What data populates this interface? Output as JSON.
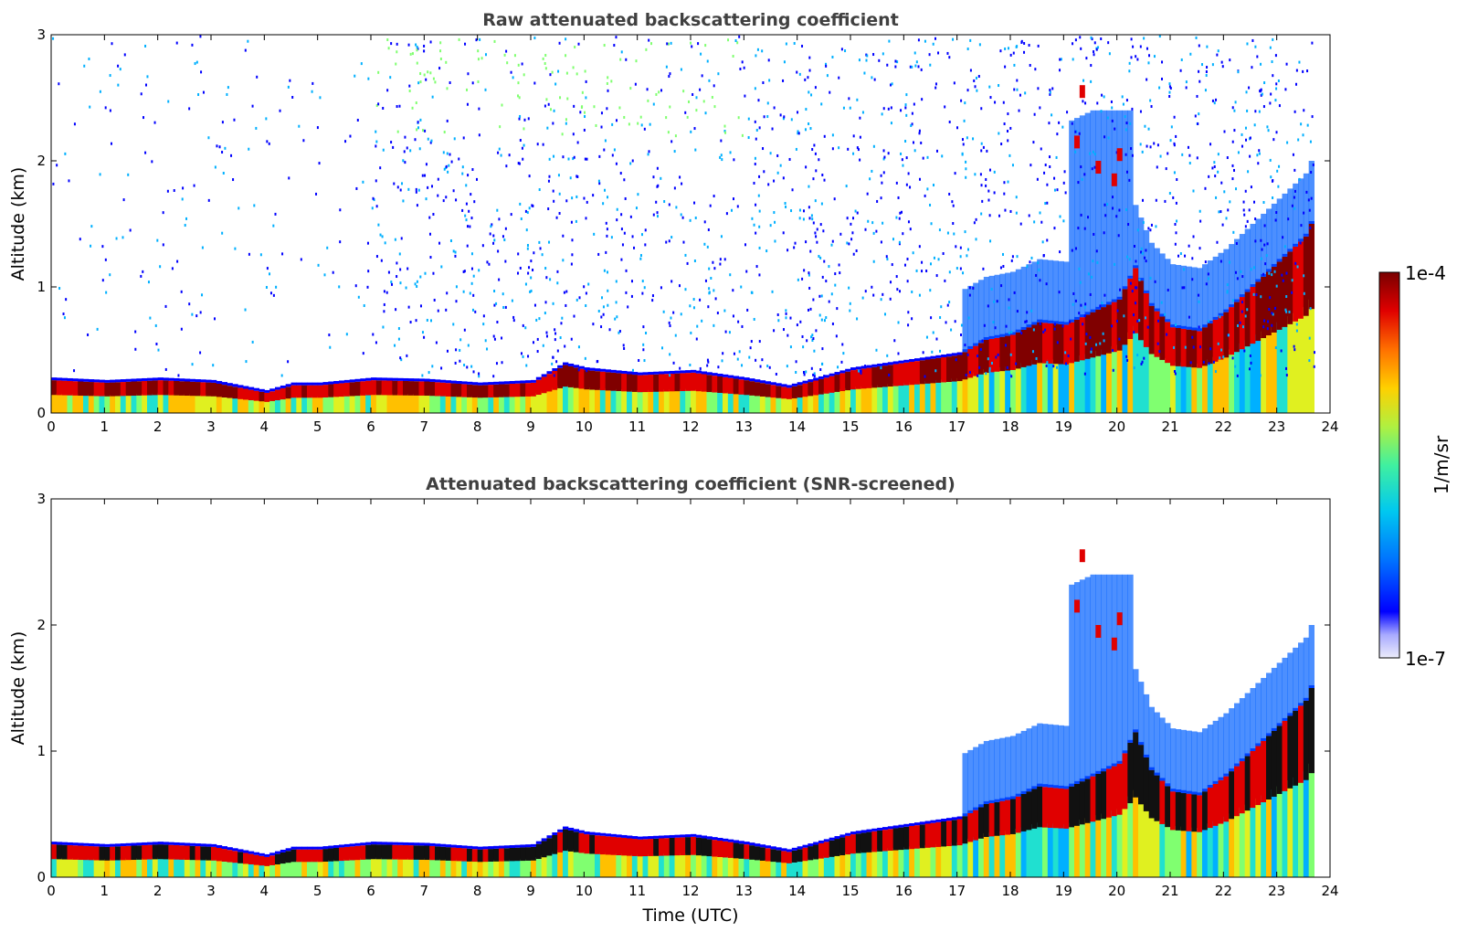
{
  "chart_data": [
    {
      "type": "heatmap",
      "title": "Raw attenuated backscattering coefficient",
      "xlabel": "",
      "ylabel": "Altitude (km)",
      "xlim": [
        0,
        24
      ],
      "ylim": [
        0,
        3
      ],
      "xticks": [
        "0",
        "1",
        "2",
        "3",
        "4",
        "5",
        "6",
        "7",
        "8",
        "9",
        "10",
        "11",
        "12",
        "13",
        "14",
        "15",
        "16",
        "17",
        "18",
        "19",
        "20",
        "21",
        "22",
        "23",
        "24"
      ],
      "yticks": [
        "0",
        "1",
        "2",
        "3"
      ],
      "data_end_hour": 23.7,
      "layer_top_km": [
        [
          0,
          0.26
        ],
        [
          1,
          0.24
        ],
        [
          2,
          0.26
        ],
        [
          3,
          0.24
        ],
        [
          3.5,
          0.2
        ],
        [
          4,
          0.16
        ],
        [
          4.5,
          0.22
        ],
        [
          5,
          0.22
        ],
        [
          6,
          0.26
        ],
        [
          7,
          0.25
        ],
        [
          8,
          0.22
        ],
        [
          9,
          0.24
        ],
        [
          9.6,
          0.38
        ],
        [
          10,
          0.34
        ],
        [
          11,
          0.3
        ],
        [
          12,
          0.32
        ],
        [
          13,
          0.26
        ],
        [
          13.8,
          0.2
        ],
        [
          14.5,
          0.28
        ],
        [
          15,
          0.34
        ],
        [
          16,
          0.4
        ],
        [
          17,
          0.46
        ],
        [
          17.5,
          0.58
        ],
        [
          18,
          0.62
        ],
        [
          18.5,
          0.72
        ],
        [
          19,
          0.7
        ],
        [
          19.5,
          0.8
        ],
        [
          20,
          0.9
        ],
        [
          20.3,
          1.15
        ],
        [
          20.6,
          0.85
        ],
        [
          21,
          0.68
        ],
        [
          21.5,
          0.65
        ],
        [
          22,
          0.8
        ],
        [
          22.5,
          1.0
        ],
        [
          23,
          1.2
        ],
        [
          23.5,
          1.4
        ],
        [
          23.7,
          1.6
        ]
      ]
    },
    {
      "type": "heatmap",
      "title": "Attenuated backscattering coefficient (SNR-screened)",
      "xlabel": "Time (UTC)",
      "ylabel": "Altitude (km)",
      "xlim": [
        0,
        24
      ],
      "ylim": [
        0,
        3
      ],
      "xticks": [
        "0",
        "1",
        "2",
        "3",
        "4",
        "5",
        "6",
        "7",
        "8",
        "9",
        "10",
        "11",
        "12",
        "13",
        "14",
        "15",
        "16",
        "17",
        "18",
        "19",
        "20",
        "21",
        "22",
        "23",
        "24"
      ],
      "yticks": [
        "0",
        "1",
        "2",
        "3"
      ],
      "data_end_hour": 23.7
    }
  ],
  "colorbar": {
    "max_label": "1e-4",
    "min_label": "1e-7",
    "label": "1/m/sr",
    "min_value": 1e-07,
    "max_value": 0.0001,
    "scale": "log",
    "colormap": [
      "#e6e6f8",
      "#9aa0ff",
      "#0000ff",
      "#0060ff",
      "#00b0ff",
      "#20e0d0",
      "#80ff70",
      "#e0f020",
      "#ffc000",
      "#ff6000",
      "#e00000",
      "#800000"
    ]
  }
}
